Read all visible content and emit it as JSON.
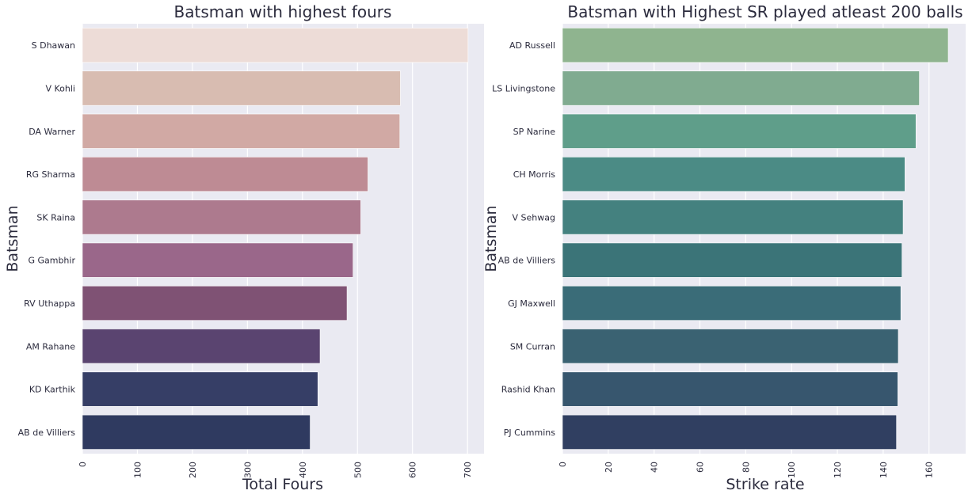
{
  "chart_data": [
    {
      "type": "bar",
      "orientation": "horizontal",
      "title": "Batsman with highest fours",
      "xlabel": "Total Fours",
      "ylabel": "Batsman",
      "xlim": [
        0,
        730
      ],
      "xticks": [
        0,
        100,
        200,
        300,
        400,
        500,
        600,
        700
      ],
      "grid": true,
      "categories": [
        "S Dhawan",
        "V Kohli",
        "DA Warner",
        "RG Sharma",
        "SK Raina",
        "G Gambhir",
        "RV Uthappa",
        "AM Rahane",
        "KD Karthik",
        "AB de Villiers"
      ],
      "values": [
        701,
        578,
        577,
        519,
        506,
        492,
        481,
        432,
        428,
        414
      ],
      "colors": [
        "#eddcd7",
        "#d8bcb1",
        "#d1a9a4",
        "#be8b94",
        "#ad7a8e",
        "#9a678a",
        "#7f5274",
        "#5a4470",
        "#363e66",
        "#2f3a60"
      ],
      "background": "#eaeaf2"
    },
    {
      "type": "bar",
      "orientation": "horizontal",
      "title": "Batsman with Highest SR played atleast 200 balls",
      "xlabel": "Strike rate",
      "ylabel": "Batsman",
      "xlim": [
        0,
        176
      ],
      "xticks": [
        0,
        20,
        40,
        60,
        80,
        100,
        120,
        140,
        160
      ],
      "grid": true,
      "categories": [
        "AD Russell",
        "LS Livingstone",
        "SP Narine",
        "CH Morris",
        "V Sehwag",
        "AB de Villiers",
        "GJ Maxwell",
        "SM Curran",
        "Rashid Khan",
        "PJ Cummins"
      ],
      "values": [
        168.4,
        155.8,
        154.3,
        149.5,
        148.7,
        148.2,
        147.7,
        146.6,
        146.4,
        145.8
      ],
      "colors": [
        "#8fb48f",
        "#80ab90",
        "#5f9e8a",
        "#4b8b85",
        "#44817f",
        "#3b7478",
        "#3a6c78",
        "#3a6272",
        "#37566e",
        "#303f61"
      ],
      "background": "#eaeaf2"
    }
  ]
}
